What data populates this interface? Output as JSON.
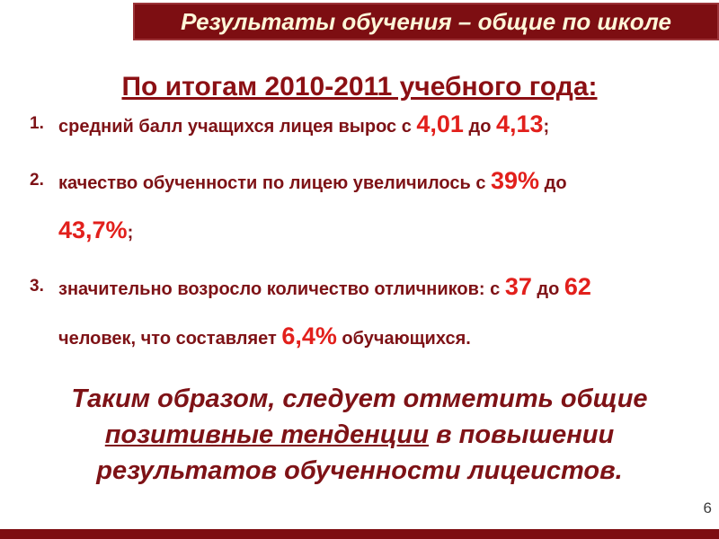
{
  "slide": {
    "banner_title": "Результаты обучения – общие по школе",
    "heading": "По итогам 2010-2011 учебного года:",
    "page_number": "6"
  },
  "list": {
    "items": [
      {
        "number": "1.",
        "lines": [
          [
            {
              "t": "средний балл учащихся лицея вырос с ",
              "big": false
            },
            {
              "t": "4,01",
              "big": true
            },
            {
              "t": " до ",
              "big": false
            },
            {
              "t": "4,13",
              "big": true
            },
            {
              "t": ";",
              "big": false
            }
          ]
        ]
      },
      {
        "number": "2.",
        "lines": [
          [
            {
              "t": "качество обученности по лицею увеличилось с ",
              "big": false
            },
            {
              "t": "39%",
              "big": true
            },
            {
              "t": " до",
              "big": false
            }
          ],
          [
            {
              "t": "43,7%",
              "big": true
            },
            {
              "t": ";",
              "big": false
            }
          ]
        ]
      },
      {
        "number": "3.",
        "lines": [
          [
            {
              "t": "значительно возросло количество отличников: с ",
              "big": false
            },
            {
              "t": "37",
              "big": true
            },
            {
              "t": " до ",
              "big": false
            },
            {
              "t": "62",
              "big": true
            }
          ],
          [
            {
              "t": "человек, что составляет ",
              "big": false
            },
            {
              "t": "6,4%",
              "big": true
            },
            {
              "t": " обучающихся.",
              "big": false
            }
          ]
        ]
      }
    ]
  },
  "conclusion": {
    "lines": [
      [
        {
          "t": "Таким образом, следует отметить общие",
          "u": false
        }
      ],
      [
        {
          "t": "позитивные тенденции",
          "u": true
        },
        {
          "t": " в повышении",
          "u": false
        }
      ],
      [
        {
          "t": "результатов обученности лицеистов.",
          "u": false
        }
      ]
    ]
  },
  "colors": {
    "banner_bg": "#7d0e12",
    "banner_border": "#9c3438",
    "banner_text": "#fdf6d8",
    "heading_text": "#8c1014",
    "body_text": "#7e1216",
    "accent_red": "#e2201c",
    "conclusion_text": "#7e1216",
    "page_number": "#3c3c3c",
    "footer_bar": "#7d0e12"
  }
}
